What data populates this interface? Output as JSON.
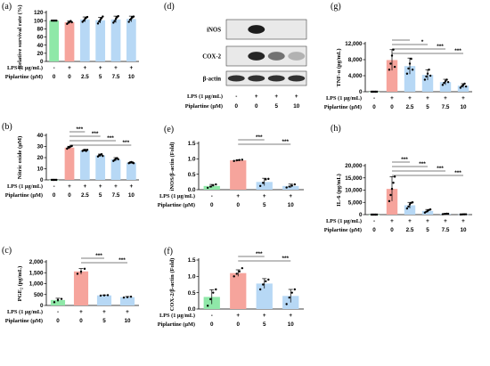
{
  "colors": {
    "control": "#8fe8a8",
    "lps": "#f6a49c",
    "treated": "#b7d8f5",
    "dots": "#000000"
  },
  "row_labels": {
    "lps": "LPS (1 µg/mL)",
    "piplartine": "Piplartine (µM)"
  },
  "blot": {
    "letter": "(d)",
    "bands": [
      "iNOS",
      "COX-2",
      "β-actin"
    ],
    "lps_signs": [
      "-",
      "+",
      "+",
      "+"
    ],
    "piplartine": [
      "0",
      "0",
      "5",
      "10"
    ]
  },
  "chart_data": [
    {
      "id": "a",
      "letter": "(a)",
      "type": "bar",
      "ylabel": "Relative survival rate (%)",
      "yticks": [
        "0",
        "20",
        "40",
        "60",
        "80",
        "100",
        "120"
      ],
      "ylim": [
        0,
        120
      ],
      "lps_signs": [
        "-",
        "+",
        "+",
        "+",
        "+",
        "+"
      ],
      "piplartine": [
        "0",
        "0",
        "2.5",
        "5",
        "7.5",
        "10"
      ],
      "values": [
        100,
        96,
        103,
        101,
        103,
        104
      ],
      "errors": [
        1,
        3,
        6,
        7,
        8,
        7
      ],
      "points": [
        [
          100,
          100,
          100,
          100,
          100
        ],
        [
          92,
          95,
          97,
          99,
          96
        ],
        [
          97,
          100,
          104,
          107,
          109
        ],
        [
          93,
          98,
          102,
          106,
          110
        ],
        [
          95,
          99,
          104,
          108,
          111
        ],
        [
          97,
          102,
          105,
          108,
          110
        ]
      ],
      "sig": []
    },
    {
      "id": "b",
      "letter": "(b)",
      "type": "bar",
      "ylabel": "Nitric oxide (µM)",
      "yticks": [
        "0",
        "10",
        "20",
        "30",
        "40"
      ],
      "ylim": [
        0,
        40
      ],
      "lps_signs": [
        "-",
        "+",
        "+",
        "+",
        "+",
        "+"
      ],
      "piplartine": [
        "0",
        "0",
        "2.5",
        "5",
        "7.5",
        "10"
      ],
      "values": [
        0,
        29,
        26.5,
        22,
        18.5,
        15.5
      ],
      "errors": [
        0,
        1.2,
        0.8,
        1.2,
        1.5,
        0.7
      ],
      "points": [
        [
          0,
          0,
          0,
          0,
          0
        ],
        [
          28,
          29,
          29.5,
          30,
          30.5
        ],
        [
          26,
          26.5,
          27,
          26,
          27
        ],
        [
          21,
          22,
          22.5,
          23,
          21.5
        ],
        [
          17,
          18,
          19,
          19.5,
          18.5
        ],
        [
          15,
          15.5,
          16,
          15.5,
          15
        ]
      ],
      "sig": [
        {
          "from": 1,
          "to": 2,
          "label": "***"
        },
        {
          "from": 1,
          "to": 3,
          "label": "***"
        },
        {
          "from": 1,
          "to": 4,
          "label": "***"
        },
        {
          "from": 1,
          "to": 5,
          "label": "***"
        }
      ]
    },
    {
      "id": "c",
      "letter": "(c)",
      "type": "bar",
      "ylabel": "PGE₂ (pg/mL)",
      "yticks": [
        "0",
        "500",
        "1,000",
        "1,500",
        "2,000"
      ],
      "ylim": [
        0,
        2000
      ],
      "lps_signs": [
        "-",
        "+",
        "+",
        "+"
      ],
      "piplartine": [
        "0",
        "0",
        "5",
        "10"
      ],
      "values": [
        250,
        1560,
        460,
        380
      ],
      "errors": [
        80,
        130,
        20,
        30
      ],
      "points": [
        [
          150,
          250,
          300
        ],
        [
          1450,
          1550,
          1680
        ],
        [
          450,
          460,
          470
        ],
        [
          360,
          380,
          400
        ]
      ],
      "sig": [
        {
          "from": 1,
          "to": 2,
          "label": "***"
        },
        {
          "from": 1,
          "to": 3,
          "label": "***"
        }
      ]
    },
    {
      "id": "e",
      "letter": "(e)",
      "type": "bar",
      "ylabel": "iNOS/β-actin (Fold)",
      "yticks": [
        "0.0",
        "0.5",
        "1.0",
        "1.5"
      ],
      "ylim": [
        0,
        1.5
      ],
      "lps_signs": [
        "-",
        "+",
        "+",
        "+"
      ],
      "piplartine": [
        "0",
        "0",
        "5",
        "10"
      ],
      "values": [
        0.12,
        0.95,
        0.25,
        0.12
      ],
      "errors": [
        0.05,
        0.02,
        0.12,
        0.06
      ],
      "points": [
        [
          0.06,
          0.1,
          0.14,
          0.17
        ],
        [
          0.93,
          0.95,
          0.96,
          0.97
        ],
        [
          0.12,
          0.22,
          0.33,
          0.35
        ],
        [
          0.07,
          0.1,
          0.13,
          0.17
        ]
      ],
      "sig": [
        {
          "from": 1,
          "to": 2,
          "label": "***"
        },
        {
          "from": 1,
          "to": 3,
          "label": "***"
        }
      ]
    },
    {
      "id": "f",
      "letter": "(f)",
      "type": "bar",
      "ylabel": "COX-2/β-actin (Fold)",
      "yticks": [
        "0.0",
        "0.5",
        "1.0",
        "1.5"
      ],
      "ylim": [
        0,
        1.5
      ],
      "lps_signs": [
        "-",
        "+",
        "+",
        "+"
      ],
      "piplartine": [
        "0",
        "0",
        "5",
        "10"
      ],
      "values": [
        0.37,
        1.1,
        0.78,
        0.4
      ],
      "errors": [
        0.22,
        0.1,
        0.15,
        0.2
      ],
      "points": [
        [
          0.1,
          0.3,
          0.5,
          0.6
        ],
        [
          1.0,
          1.08,
          1.15,
          1.25
        ],
        [
          0.6,
          0.75,
          0.85,
          0.9
        ],
        [
          0.15,
          0.35,
          0.5,
          0.6
        ]
      ],
      "sig": [
        {
          "from": 1,
          "to": 2,
          "label": "***"
        },
        {
          "from": 1,
          "to": 3,
          "label": "***"
        }
      ]
    },
    {
      "id": "g",
      "letter": "(g)",
      "type": "bar",
      "ylabel": "TNF-α (pg/mL)",
      "yticks": [
        "0",
        "4,000",
        "8,000",
        "12,000"
      ],
      "ylim": [
        0,
        12000
      ],
      "lps_signs": [
        "-",
        "+",
        "+",
        "+",
        "+",
        "+"
      ],
      "piplartine": [
        "0",
        "0",
        "2.5",
        "5",
        "7.5",
        "10"
      ],
      "values": [
        0,
        7900,
        6400,
        4200,
        2400,
        1500
      ],
      "errors": [
        0,
        2600,
        2000,
        1300,
        700,
        500
      ],
      "points": [
        [
          0,
          0,
          0,
          0,
          0
        ],
        [
          5500,
          7000,
          9000,
          10500,
          6200
        ],
        [
          4500,
          5800,
          7000,
          8200,
          5500
        ],
        [
          3000,
          3800,
          4500,
          5500,
          4000
        ],
        [
          1700,
          2200,
          2600,
          3000,
          2400
        ],
        [
          1000,
          1400,
          1700,
          2000,
          1300
        ]
      ],
      "sig": [
        {
          "from": 1,
          "to": 2,
          "label": ""
        },
        {
          "from": 1,
          "to": 3,
          "label": "*"
        },
        {
          "from": 1,
          "to": 4,
          "label": "***"
        },
        {
          "from": 1,
          "to": 5,
          "label": "***"
        }
      ]
    },
    {
      "id": "h",
      "letter": "(h)",
      "type": "bar",
      "ylabel": "IL-6 (pg/mL)",
      "yticks": [
        "0",
        "5,000",
        "10,000",
        "15,000",
        "20,000"
      ],
      "ylim": [
        0,
        20000
      ],
      "lps_signs": [
        "-",
        "+",
        "+",
        "+",
        "+",
        "+"
      ],
      "piplartine": [
        "0",
        "0",
        "2.5",
        "5",
        "7.5",
        "10"
      ],
      "values": [
        0,
        10500,
        3800,
        1500,
        300,
        100
      ],
      "errors": [
        0,
        5000,
        1200,
        600,
        100,
        80
      ],
      "points": [
        [
          0,
          0,
          0,
          0,
          0
        ],
        [
          5500,
          8000,
          10500,
          13000,
          15500
        ],
        [
          2500,
          3300,
          4200,
          4800,
          5000
        ],
        [
          800,
          1200,
          1500,
          1900,
          2100
        ],
        [
          150,
          250,
          300,
          400,
          350
        ],
        [
          50,
          80,
          100,
          130,
          120
        ]
      ],
      "sig": [
        {
          "from": 1,
          "to": 2,
          "label": "***"
        },
        {
          "from": 1,
          "to": 3,
          "label": "***"
        },
        {
          "from": 1,
          "to": 4,
          "label": "***"
        },
        {
          "from": 1,
          "to": 5,
          "label": "***"
        }
      ]
    }
  ]
}
